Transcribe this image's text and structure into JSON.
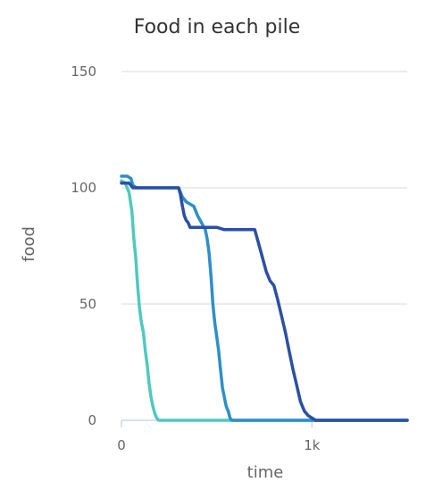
{
  "chart_data": {
    "type": "line",
    "title": "Food in each pile",
    "xlabel": "time",
    "ylabel": "food",
    "xlim": [
      0,
      1500
    ],
    "ylim": [
      0,
      150
    ],
    "x_ticks": [
      {
        "value": 0,
        "label": "0"
      },
      {
        "value": 1000,
        "label": "1k"
      }
    ],
    "y_ticks": [
      {
        "value": 0,
        "label": "0"
      },
      {
        "value": 50,
        "label": "50"
      },
      {
        "value": 100,
        "label": "100"
      },
      {
        "value": 150,
        "label": "150"
      }
    ],
    "grid": true,
    "legend": "none",
    "series": [
      {
        "color": "#4ec9c0",
        "x": [
          0,
          20,
          40,
          55,
          65,
          75,
          85,
          95,
          105,
          115,
          125,
          135,
          145,
          155,
          165,
          175,
          185,
          195,
          1500
        ],
        "values": [
          103,
          102,
          98,
          90,
          78,
          70,
          58,
          48,
          42,
          38,
          30,
          24,
          16,
          10,
          6,
          3,
          1,
          0,
          0
        ]
      },
      {
        "color": "#2e8fc8",
        "x": [
          0,
          30,
          50,
          60,
          80,
          200,
          300,
          320,
          340,
          360,
          380,
          400,
          420,
          440,
          450,
          460,
          470,
          480,
          490,
          500,
          510,
          520,
          530,
          540,
          550,
          560,
          570,
          580,
          1500
        ],
        "values": [
          105,
          105,
          104,
          101,
          100,
          100,
          100,
          96,
          94,
          93,
          92,
          88,
          85,
          82,
          78,
          72,
          62,
          50,
          42,
          36,
          30,
          22,
          14,
          10,
          6,
          4,
          1,
          0,
          0
        ]
      },
      {
        "color": "#2c4fa5",
        "x": [
          0,
          40,
          60,
          80,
          200,
          300,
          310,
          320,
          330,
          340,
          350,
          360,
          400,
          500,
          540,
          600,
          650,
          700,
          720,
          740,
          760,
          780,
          800,
          820,
          840,
          860,
          880,
          900,
          920,
          940,
          960,
          980,
          1000,
          1020,
          1500
        ],
        "values": [
          102,
          102,
          100,
          100,
          100,
          100,
          97,
          92,
          88,
          86,
          85,
          83,
          83,
          83,
          82,
          82,
          82,
          82,
          76,
          70,
          64,
          60,
          58,
          52,
          45,
          38,
          30,
          22,
          15,
          8,
          4,
          2,
          1,
          0,
          0
        ]
      }
    ]
  }
}
